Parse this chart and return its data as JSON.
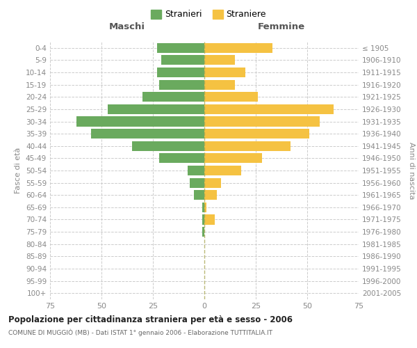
{
  "age_groups": [
    "0-4",
    "5-9",
    "10-14",
    "15-19",
    "20-24",
    "25-29",
    "30-34",
    "35-39",
    "40-44",
    "45-49",
    "50-54",
    "55-59",
    "60-64",
    "65-69",
    "70-74",
    "75-79",
    "80-84",
    "85-89",
    "90-94",
    "95-99",
    "100+"
  ],
  "birth_years": [
    "2001-2005",
    "1996-2000",
    "1991-1995",
    "1986-1990",
    "1981-1985",
    "1976-1980",
    "1971-1975",
    "1966-1970",
    "1961-1965",
    "1956-1960",
    "1951-1955",
    "1946-1950",
    "1941-1945",
    "1936-1940",
    "1931-1935",
    "1926-1930",
    "1921-1925",
    "1916-1920",
    "1911-1915",
    "1906-1910",
    "≤ 1905"
  ],
  "males": [
    23,
    21,
    23,
    22,
    30,
    47,
    62,
    55,
    35,
    22,
    8,
    7,
    5,
    1,
    1,
    1,
    0,
    0,
    0,
    0,
    0
  ],
  "females": [
    33,
    15,
    20,
    15,
    26,
    63,
    56,
    51,
    42,
    28,
    18,
    8,
    6,
    1,
    5,
    0,
    0,
    0,
    0,
    0,
    0
  ],
  "male_color": "#6aaa5e",
  "female_color": "#f5c242",
  "background_color": "#ffffff",
  "grid_color": "#cccccc",
  "title": "Popolazione per cittadinanza straniera per età e sesso - 2006",
  "subtitle": "COMUNE DI MUGGIÒ (MB) - Dati ISTAT 1° gennaio 2006 - Elaborazione TUTTITALIA.IT",
  "xlabel_left": "Maschi",
  "xlabel_right": "Femmine",
  "ylabel_left": "Fasce di età",
  "ylabel_right": "Anni di nascita",
  "legend_male": "Stranieri",
  "legend_female": "Straniere",
  "xlim": 75
}
